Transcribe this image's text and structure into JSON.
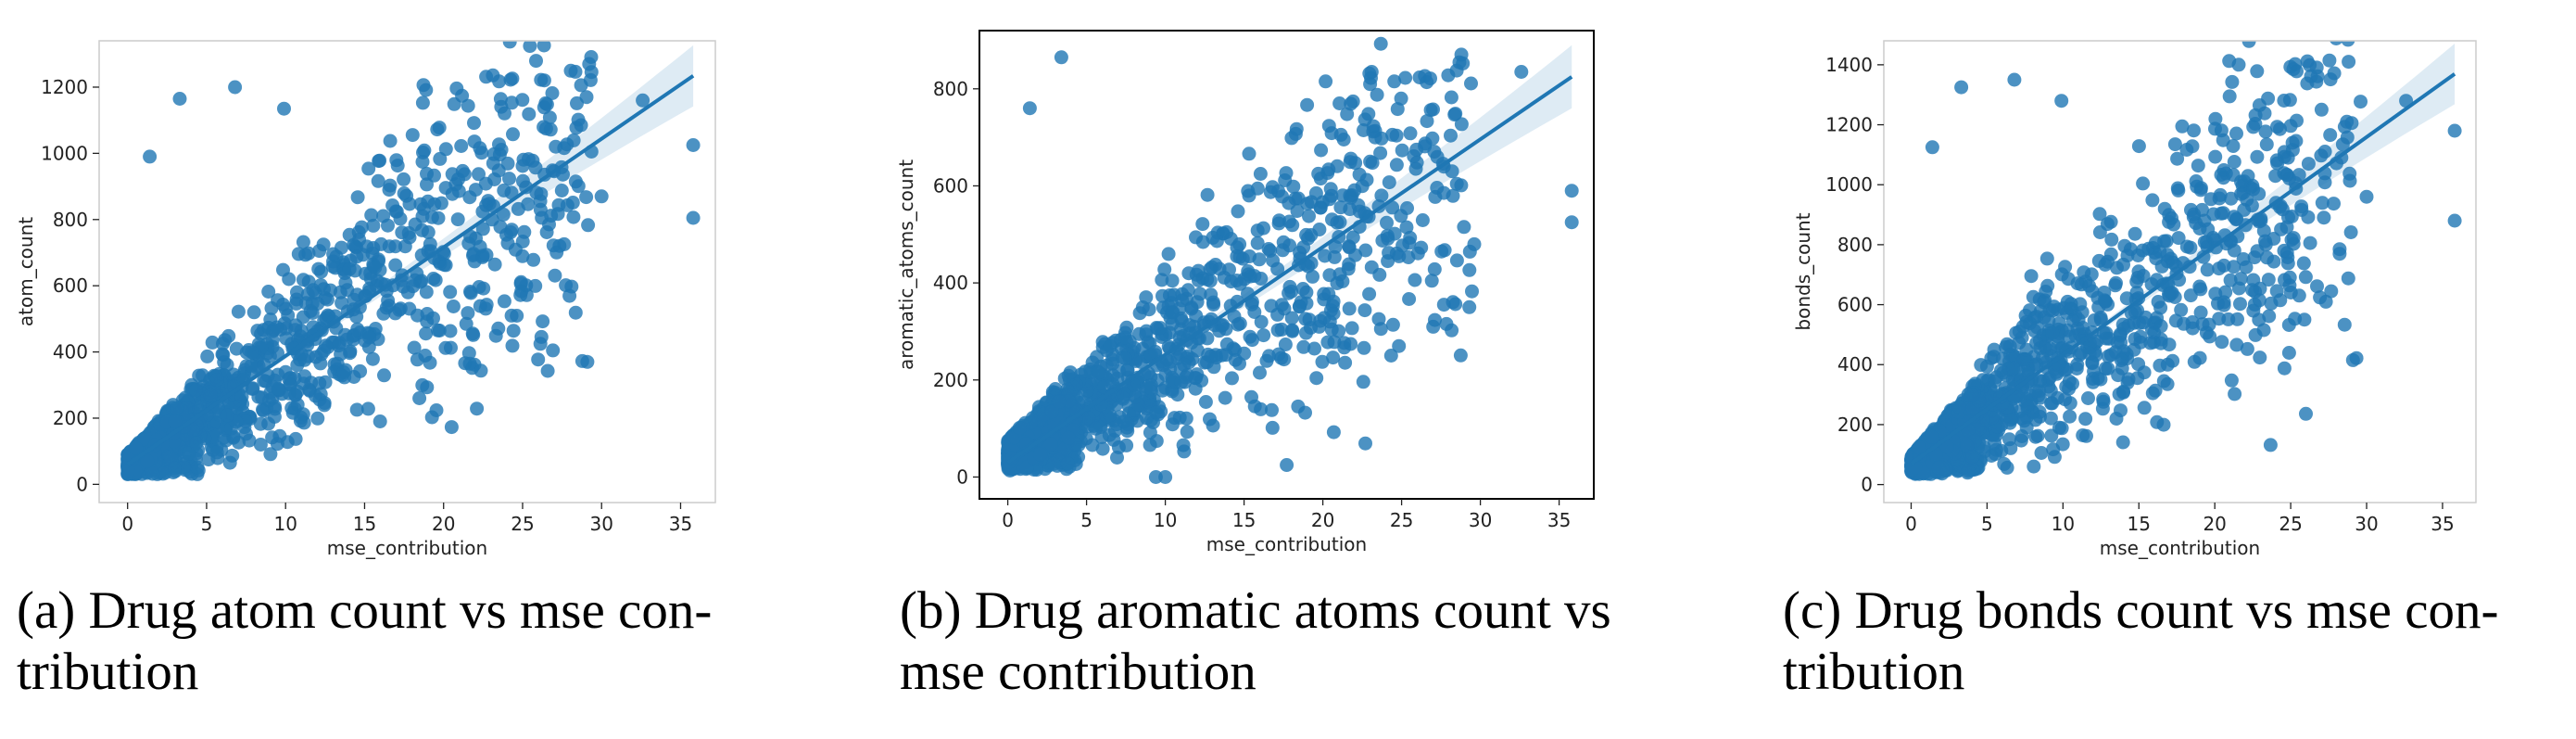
{
  "chart_data": [
    {
      "type": "scatter",
      "caption_line1": "(a) Drug atom count vs mse con-",
      "caption_line2": "tribution",
      "xlabel": "mse_contribution",
      "ylabel": "atom_count",
      "xlim": [
        -1.8,
        37.2
      ],
      "ylim": [
        -55,
        1340
      ],
      "xticks": [
        0,
        5,
        10,
        15,
        20,
        25,
        30,
        35
      ],
      "yticks": [
        0,
        200,
        400,
        600,
        800,
        1000,
        1200
      ],
      "regression": {
        "intercept": 60,
        "slope": 32.8,
        "x_range": [
          0,
          35.8
        ]
      },
      "color": "#1f77b4",
      "outliers": [
        [
          6.8,
          1200
        ],
        [
          3.3,
          1165
        ],
        [
          9.9,
          1135
        ],
        [
          1.4,
          990
        ],
        [
          32.6,
          1160
        ],
        [
          35.8,
          1025
        ],
        [
          35.8,
          805
        ],
        [
          29.1,
          370
        ],
        [
          28.7,
          1085
        ],
        [
          30.0,
          870
        ]
      ]
    },
    {
      "type": "scatter",
      "caption_line1": "(b) Drug aromatic atoms count vs",
      "caption_line2": "mse contribution",
      "xlabel": "mse_contribution",
      "ylabel": "aromatic_atoms_count",
      "xlim": [
        -1.8,
        37.2
      ],
      "ylim": [
        -45,
        920
      ],
      "xticks": [
        0,
        5,
        10,
        15,
        20,
        25,
        30,
        35
      ],
      "yticks": [
        0,
        200,
        400,
        600,
        800
      ],
      "regression": {
        "intercept": 30,
        "slope": 22.2,
        "x_range": [
          0,
          35.8
        ]
      },
      "color": "#1f77b4",
      "outliers": [
        [
          3.4,
          865
        ],
        [
          1.4,
          760
        ],
        [
          23.1,
          835
        ],
        [
          32.6,
          835
        ],
        [
          35.8,
          590
        ],
        [
          35.8,
          525
        ],
        [
          29.3,
          350
        ],
        [
          10.0,
          0
        ],
        [
          9.4,
          0
        ]
      ]
    },
    {
      "type": "scatter",
      "caption_line1": "(c) Drug bonds count vs mse con-",
      "caption_line2": "tribution",
      "xlabel": "mse_contribution",
      "ylabel": "bonds_count",
      "xlim": [
        -1.8,
        37.2
      ],
      "ylim": [
        -60,
        1480
      ],
      "xticks": [
        0,
        5,
        10,
        15,
        20,
        25,
        30,
        35
      ],
      "yticks": [
        0,
        200,
        400,
        600,
        800,
        1000,
        1200,
        1400
      ],
      "regression": {
        "intercept": 70,
        "slope": 36.3,
        "x_range": [
          0,
          35.8
        ]
      },
      "color": "#1f77b4",
      "outliers": [
        [
          6.8,
          1350
        ],
        [
          3.3,
          1325
        ],
        [
          9.9,
          1280
        ],
        [
          1.4,
          1125
        ],
        [
          32.6,
          1280
        ],
        [
          35.8,
          1180
        ],
        [
          35.8,
          880
        ],
        [
          29.1,
          415
        ],
        [
          28.7,
          1210
        ],
        [
          30.0,
          960
        ]
      ]
    }
  ]
}
